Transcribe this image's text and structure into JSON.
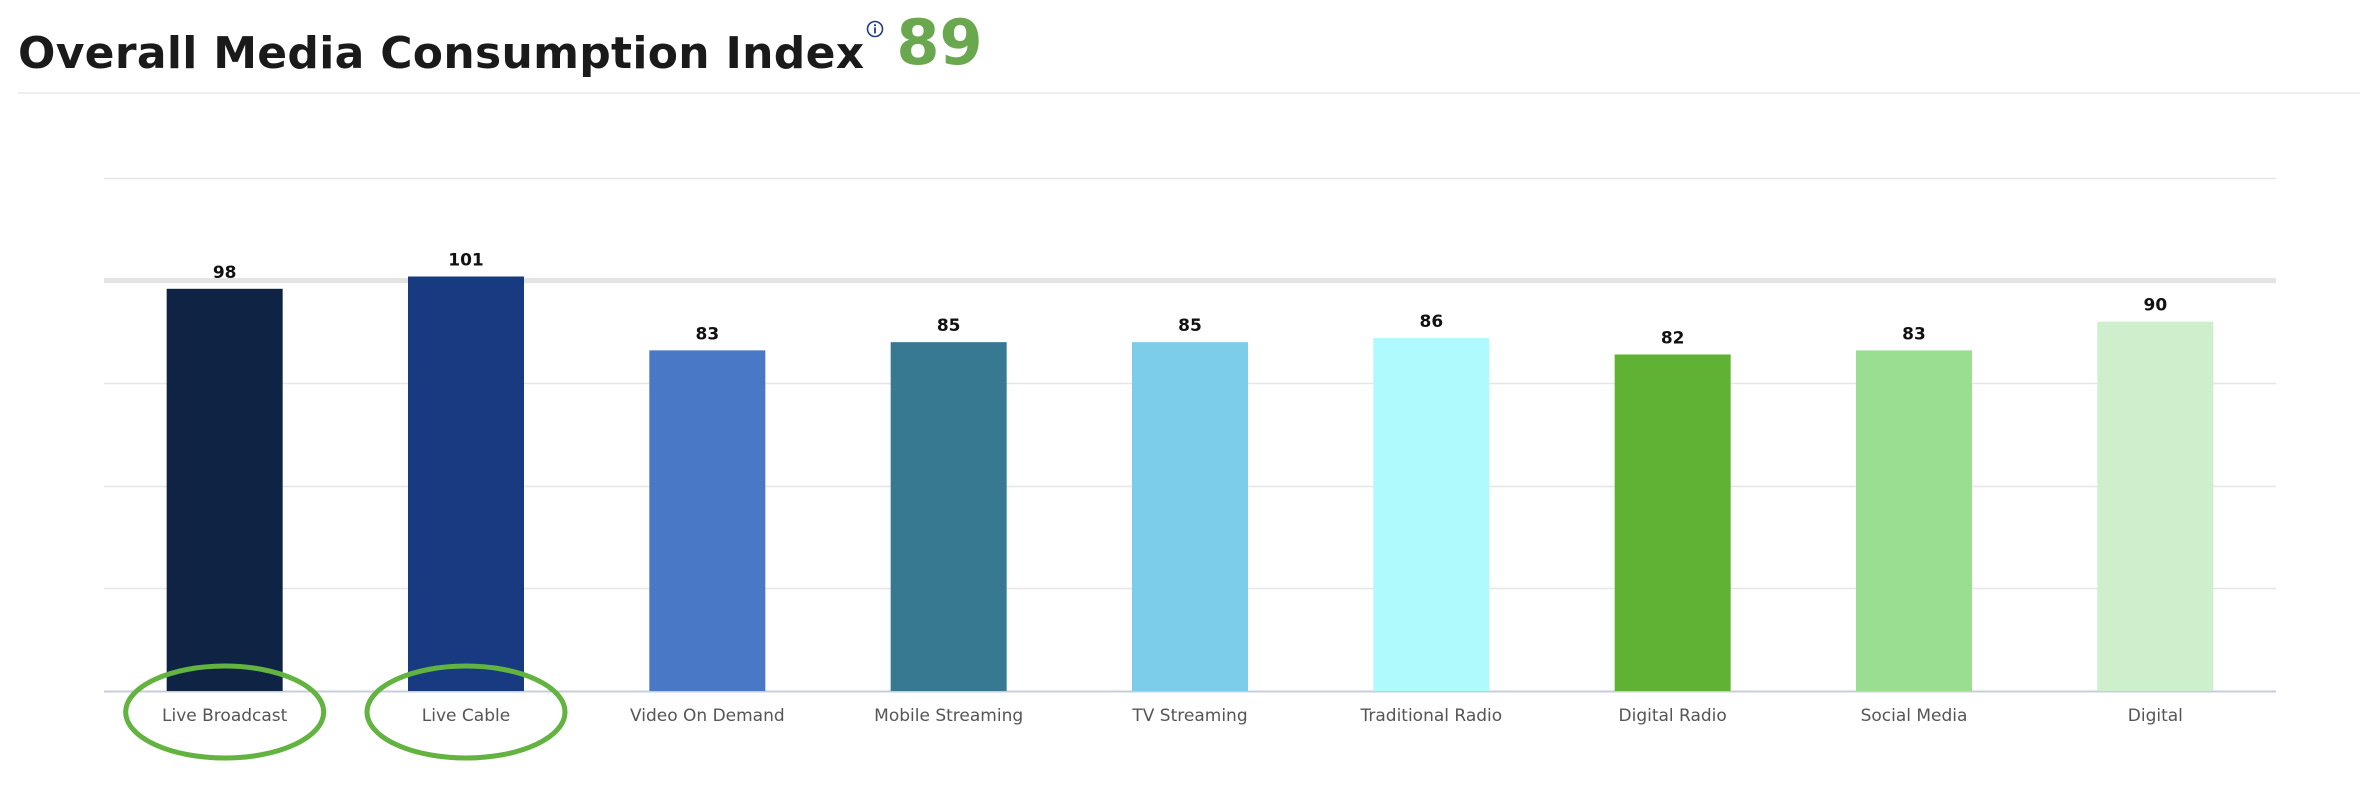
{
  "header": {
    "title": "Overall Media Consumption Index",
    "info_icon": "info-icon",
    "overall_index": "89"
  },
  "chart_data": {
    "type": "bar",
    "categories": [
      "Live Broadcast",
      "Live Cable",
      "Video On Demand",
      "Mobile Streaming",
      "TV Streaming",
      "Traditional Radio",
      "Digital Radio",
      "Social Media",
      "Digital"
    ],
    "values": [
      98,
      101,
      83,
      85,
      85,
      86,
      82,
      83,
      90
    ],
    "colors": [
      "#0f2445",
      "#173a80",
      "#4878c6",
      "#367991",
      "#7ccdea",
      "#aefafd",
      "#5fb234",
      "#9adf91",
      "#cdefcb"
    ],
    "ylim": [
      0,
      125
    ],
    "grid": true,
    "reference_line": 100,
    "highlighted_categories": [
      "Live Broadcast",
      "Live Cable"
    ],
    "highlight_color": "#62b33f",
    "title": "",
    "xlabel": "",
    "ylabel": ""
  }
}
